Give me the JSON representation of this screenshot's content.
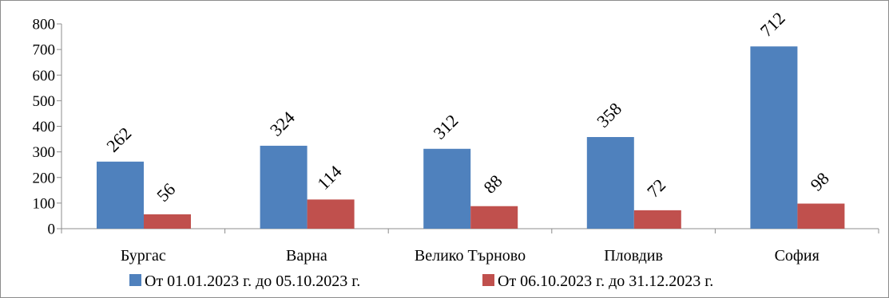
{
  "chart_data": {
    "type": "bar",
    "categories": [
      "Бургас",
      "Варна",
      "Велико Търново",
      "Пловдив",
      "София"
    ],
    "series": [
      {
        "name": "От 01.01.2023 г. до 05.10.2023 г.",
        "color": "#4f81bd",
        "values": [
          262,
          324,
          312,
          358,
          712
        ]
      },
      {
        "name": "От 06.10.2023 г. до 31.12.2023 г.",
        "color": "#c0504d",
        "values": [
          56,
          114,
          88,
          72,
          98
        ]
      }
    ],
    "yticks": [
      "0",
      "100",
      "200",
      "300",
      "400",
      "500",
      "600",
      "700",
      "800"
    ],
    "ylim": [
      0,
      800
    ],
    "title": "",
    "xlabel": "",
    "ylabel": "",
    "grid": false,
    "legend_position": "bottom"
  }
}
